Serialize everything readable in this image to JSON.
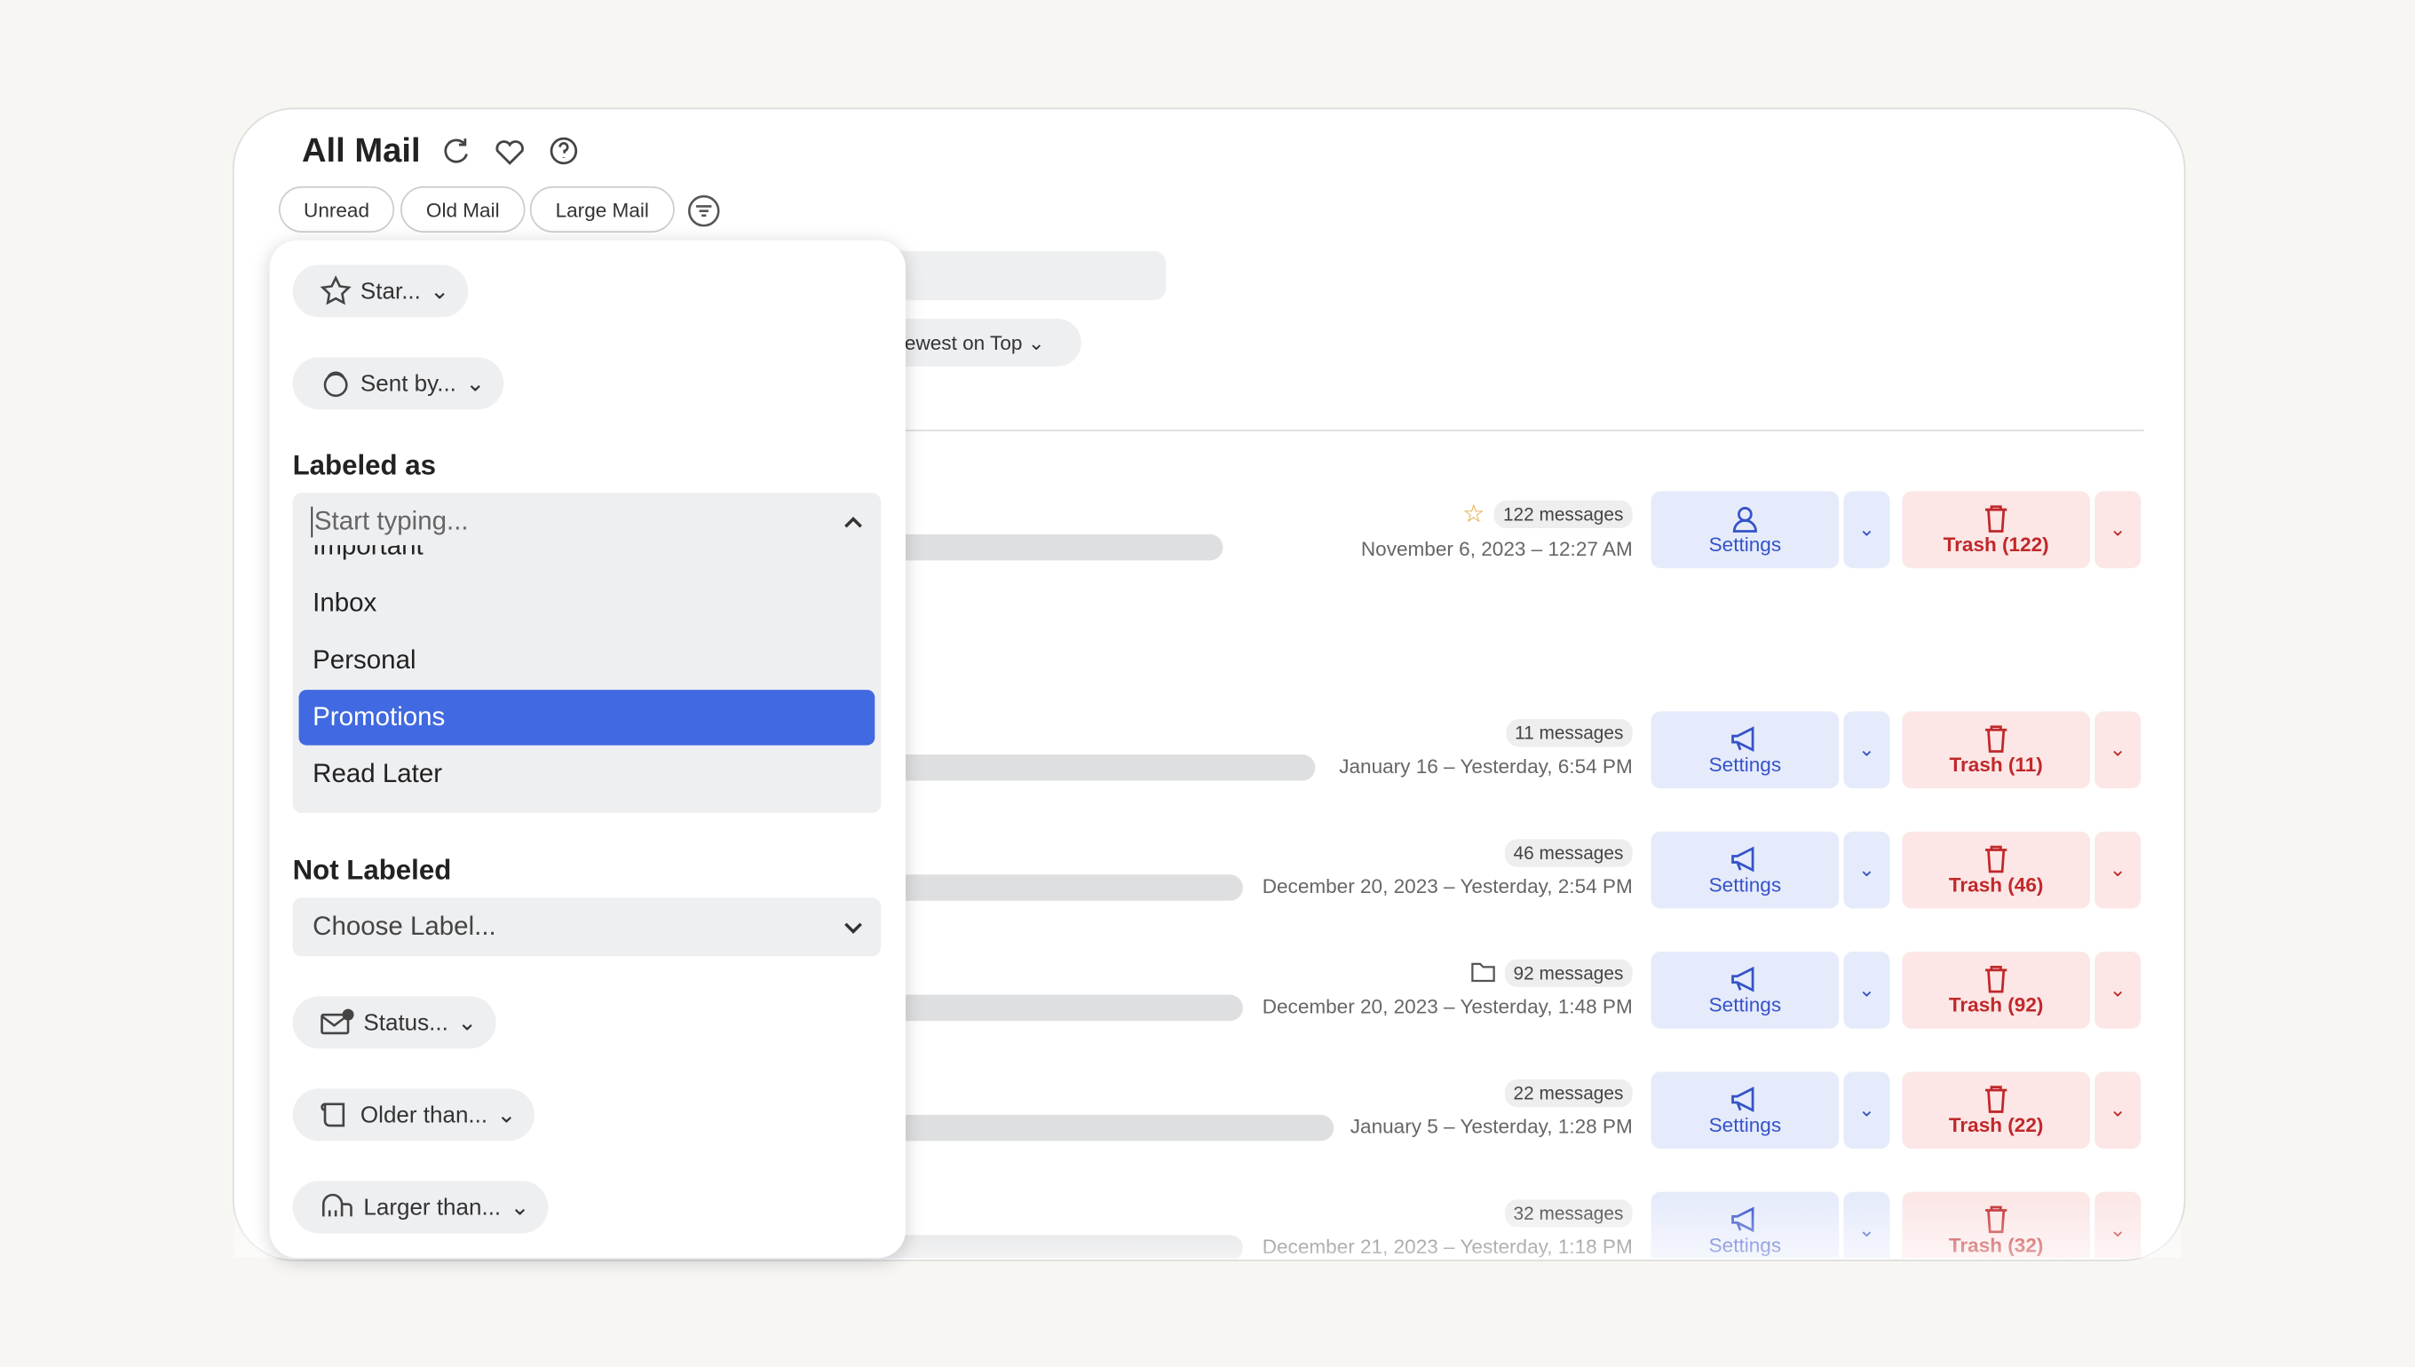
{
  "header": {
    "title": "All Mail"
  },
  "filters": [
    "Unread",
    "Old Mail",
    "Large Mail"
  ],
  "sort": "Newest on Top",
  "panel": {
    "star": "Star...",
    "sent_by": "Sent by...",
    "labeled_heading": "Labeled as",
    "label_input": "Start typing...",
    "label_options": [
      "Important",
      "Inbox",
      "Personal",
      "Promotions",
      "Read Later"
    ],
    "not_labeled_heading": "Not Labeled",
    "choose_label": "Choose Label...",
    "status": "Status...",
    "older_than": "Older than...",
    "larger_than": "Larger than..."
  },
  "rows": [
    {
      "messages": "122 messages",
      "date": "November 6, 2023 – 12:27 AM",
      "settings": "Settings",
      "trash": "Trash (122)"
    },
    {
      "messages": "11 messages",
      "date": "January 16 – Yesterday, 6:54 PM",
      "settings": "Settings",
      "trash": "Trash (11)"
    },
    {
      "messages": "46 messages",
      "date": "December 20, 2023 – Yesterday, 2:54 PM",
      "settings": "Settings",
      "trash": "Trash (46)"
    },
    {
      "messages": "92 messages",
      "date": "December 20, 2023 – Yesterday, 1:48 PM",
      "settings": "Settings",
      "trash": "Trash (92)"
    },
    {
      "messages": "22 messages",
      "date": "January 5 – Yesterday, 1:28 PM",
      "settings": "Settings",
      "trash": "Trash (22)"
    },
    {
      "messages": "32 messages",
      "date": "December 21, 2023 – Yesterday, 1:18 PM",
      "settings": "Settings",
      "trash": "Trash (32)"
    }
  ]
}
